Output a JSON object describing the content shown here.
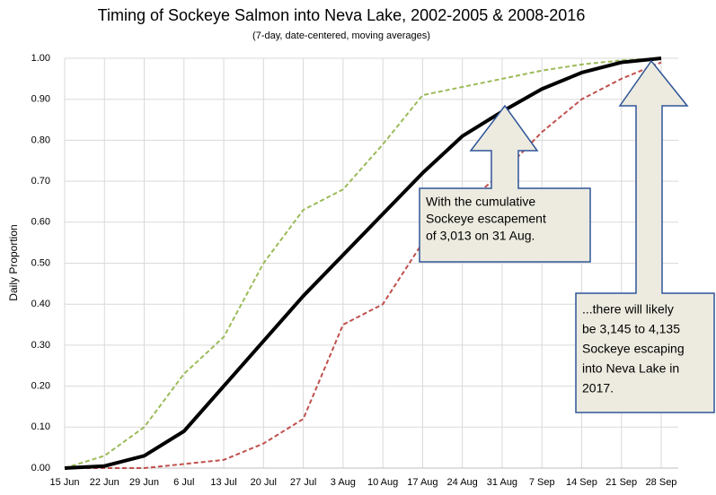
{
  "chart_data": {
    "type": "line",
    "title": "Timing of Sockeye Salmon into Neva Lake, 2002-2005 & 2008-2016",
    "subtitle": "(7-day, date-centered, moving averages)",
    "y_label": "Daily Proportion",
    "categories": [
      "15 Jun",
      "22 Jun",
      "29 Jun",
      "6 Jul",
      "13 Jul",
      "20 Jul",
      "27 Jul",
      "3 Aug",
      "10 Aug",
      "17 Aug",
      "24 Aug",
      "31 Aug",
      "7 Sep",
      "14 Sep",
      "21 Sep",
      "28 Sep"
    ],
    "series": [
      {
        "color": "#9bbb59",
        "dashed": true,
        "width": 2,
        "values": [
          0,
          0.03,
          0.1,
          0.23,
          0.32,
          0.5,
          0.63,
          0.68,
          0.79,
          0.91,
          0.93,
          0.95,
          0.97,
          0.985,
          0.995,
          1.0
        ]
      },
      {
        "color": "#c0504d",
        "dashed": true,
        "width": 2,
        "values": [
          0,
          0,
          0,
          0.01,
          0.02,
          0.06,
          0.12,
          0.35,
          0.4,
          0.55,
          0.64,
          0.72,
          0.82,
          0.9,
          0.95,
          0.99
        ]
      },
      {
        "color": "#000000",
        "dashed": false,
        "width": 4,
        "values": [
          0,
          0.005,
          0.03,
          0.09,
          0.2,
          0.31,
          0.42,
          0.52,
          0.62,
          0.72,
          0.81,
          0.87,
          0.925,
          0.965,
          0.99,
          1.0
        ]
      }
    ],
    "ylim": [
      0,
      1
    ],
    "yticks": [
      {
        "value": 0,
        "label": "0.00"
      },
      {
        "value": 0.1,
        "label": "0.10"
      },
      {
        "value": 0.2,
        "label": "0.20"
      },
      {
        "value": 0.3,
        "label": "0.30"
      },
      {
        "value": 0.4,
        "label": "0.40"
      },
      {
        "value": 0.5,
        "label": "0.50"
      },
      {
        "value": 0.6,
        "label": "0.60"
      },
      {
        "value": 0.7,
        "label": "0.70"
      },
      {
        "value": 0.8,
        "label": "0.80"
      },
      {
        "value": 0.9,
        "label": "0.90"
      },
      {
        "value": 1,
        "label": "1.00"
      }
    ],
    "grid": true,
    "annotations": [
      {
        "lines": [
          "With the cumulative",
          "Sockeye escapement",
          "of 3,013 on 31 Aug."
        ]
      },
      {
        "lines": [
          "...there  will likely",
          "be 3,145 to 4,135",
          "Sockeye escaping",
          "into Neva Lake in",
          "2017."
        ]
      }
    ]
  }
}
